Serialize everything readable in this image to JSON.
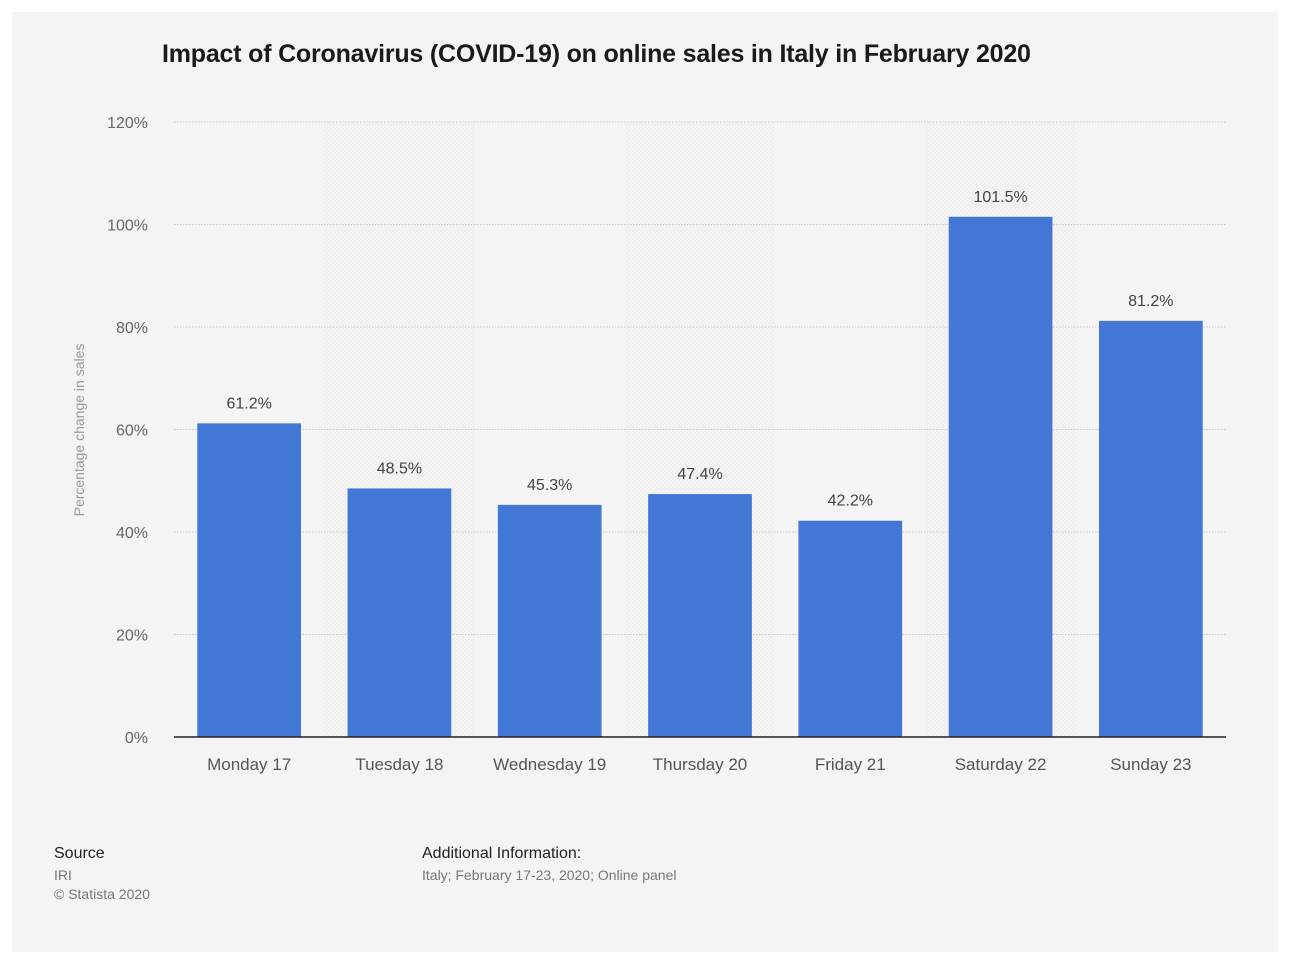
{
  "chart_data": {
    "type": "bar",
    "title": "Impact of Coronavirus (COVID-19) on online sales in Italy in February 2020",
    "ylabel": "Percentage change in sales",
    "xlabel": "",
    "categories": [
      "Monday 17",
      "Tuesday 18",
      "Wednesday 19",
      "Thursday 20",
      "Friday 21",
      "Saturday 22",
      "Sunday 23"
    ],
    "values": [
      61.2,
      48.5,
      45.3,
      47.4,
      42.2,
      101.5,
      81.2
    ],
    "value_labels": [
      "61.2%",
      "48.5%",
      "45.3%",
      "47.4%",
      "42.2%",
      "101.5%",
      "81.2%"
    ],
    "ylim": [
      0,
      120
    ],
    "yticks": [
      0,
      20,
      40,
      60,
      80,
      100,
      120
    ],
    "ytick_labels": [
      "0%",
      "20%",
      "40%",
      "60%",
      "80%",
      "100%",
      "120%"
    ],
    "grid": true,
    "bar_color": "#4277d5"
  },
  "footer": {
    "source_heading": "Source",
    "source_lines": [
      "IRI",
      "© Statista 2020"
    ],
    "additional_heading": "Additional Information:",
    "additional_text": "Italy; February 17-23, 2020; Online panel"
  }
}
